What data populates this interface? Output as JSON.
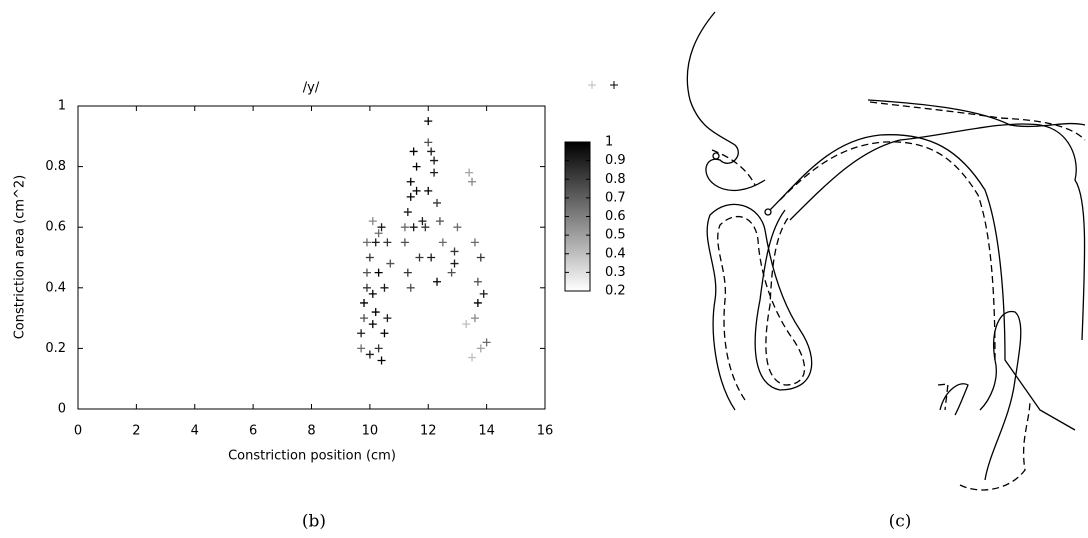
{
  "chart_data": {
    "type": "scatter",
    "title": "/y/",
    "xlabel": "Constriction position (cm)",
    "ylabel": "Constriction area (cm^2)",
    "xlim": [
      0,
      16
    ],
    "ylim": [
      0,
      1
    ],
    "xticks": [
      0,
      2,
      4,
      6,
      8,
      10,
      12,
      14,
      16
    ],
    "yticks": [
      0,
      0.2,
      0.4,
      0.6,
      0.8,
      1
    ],
    "clim": [
      0.2,
      1
    ],
    "cticks": [
      0.2,
      0.3,
      0.4,
      0.5,
      0.6,
      0.7,
      0.8,
      0.9,
      1
    ],
    "x": [
      9.7,
      9.8,
      9.9,
      9.7,
      9.8,
      9.9,
      10.0,
      10.1,
      10.0,
      10.1,
      10.2,
      10.3,
      10.2,
      10.3,
      10.4,
      10.5,
      10.4,
      10.5,
      10.6,
      10.7,
      10.3,
      10.1,
      9.9,
      10.6,
      11.2,
      11.3,
      11.4,
      11.5,
      11.3,
      11.4,
      11.5,
      11.6,
      11.4,
      11.7,
      11.8,
      11.2,
      11.6,
      11.9,
      12.0,
      12.1,
      12.0,
      12.2,
      12.3,
      12.1,
      12.4,
      12.5,
      12.3,
      12.0,
      12.2,
      12.8,
      12.9,
      13.0,
      12.9,
      13.4,
      13.5,
      13.6,
      13.7,
      13.8,
      13.9,
      13.6,
      13.8,
      14.0,
      13.3,
      13.5,
      13.7
    ],
    "y": [
      0.2,
      0.3,
      0.4,
      0.25,
      0.35,
      0.45,
      0.18,
      0.28,
      0.5,
      0.38,
      0.55,
      0.2,
      0.32,
      0.45,
      0.6,
      0.25,
      0.16,
      0.4,
      0.55,
      0.48,
      0.58,
      0.62,
      0.55,
      0.3,
      0.55,
      0.65,
      0.75,
      0.85,
      0.45,
      0.7,
      0.6,
      0.8,
      0.4,
      0.5,
      0.62,
      0.6,
      0.72,
      0.6,
      0.72,
      0.85,
      0.95,
      0.78,
      0.68,
      0.5,
      0.62,
      0.55,
      0.42,
      0.88,
      0.82,
      0.45,
      0.52,
      0.6,
      0.48,
      0.78,
      0.75,
      0.55,
      0.42,
      0.5,
      0.38,
      0.3,
      0.2,
      0.22,
      0.28,
      0.17,
      0.35
    ],
    "c": [
      0.6,
      0.7,
      0.8,
      0.9,
      1,
      0.7,
      0.9,
      1,
      0.8,
      1,
      0.9,
      0.8,
      1,
      1,
      0.9,
      1,
      1,
      0.9,
      0.8,
      0.7,
      0.6,
      0.5,
      0.6,
      0.9,
      0.7,
      0.9,
      1,
      1,
      0.8,
      1,
      0.9,
      1,
      0.7,
      0.8,
      0.9,
      0.6,
      1,
      0.8,
      1,
      0.9,
      1,
      0.9,
      0.8,
      0.9,
      0.7,
      0.6,
      1,
      0.7,
      0.9,
      0.7,
      0.8,
      0.6,
      0.9,
      0.4,
      0.5,
      0.6,
      0.7,
      0.8,
      0.9,
      0.5,
      0.4,
      0.6,
      0.3,
      0.3,
      1
    ],
    "caption": "(b)"
  },
  "diagram": {
    "caption": "(c)"
  }
}
